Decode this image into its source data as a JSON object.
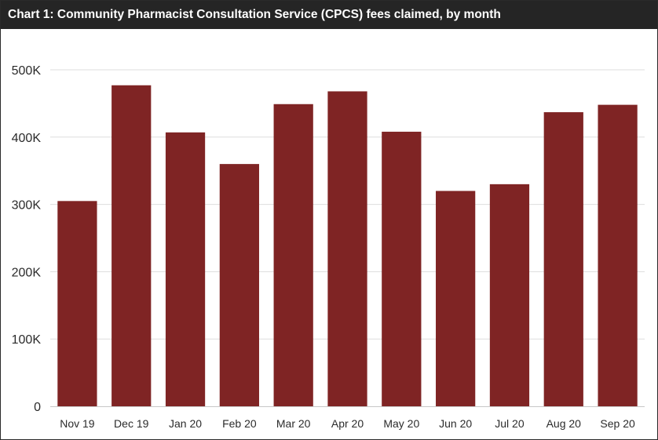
{
  "chart_data": {
    "type": "bar",
    "title": "Chart 1: Community Pharmacist Consultation Service (CPCS) fees claimed, by month",
    "xlabel": "",
    "ylabel": "",
    "categories": [
      "Nov 19",
      "Dec 19",
      "Jan 20",
      "Feb 20",
      "Mar 20",
      "Apr 20",
      "May 20",
      "Jun 20",
      "Jul 20",
      "Aug 20",
      "Sep 20"
    ],
    "values": [
      305000,
      477000,
      407000,
      360000,
      449000,
      468000,
      408000,
      320000,
      330000,
      437000,
      448000
    ],
    "ylim": [
      0,
      500000
    ],
    "yticks": [
      0,
      100000,
      200000,
      300000,
      400000,
      500000
    ],
    "ytick_labels": [
      "0",
      "100K",
      "200K",
      "300K",
      "400K",
      "500K"
    ],
    "grid": true,
    "bar_color": "#7f2424",
    "grid_color": "#dddddd"
  }
}
